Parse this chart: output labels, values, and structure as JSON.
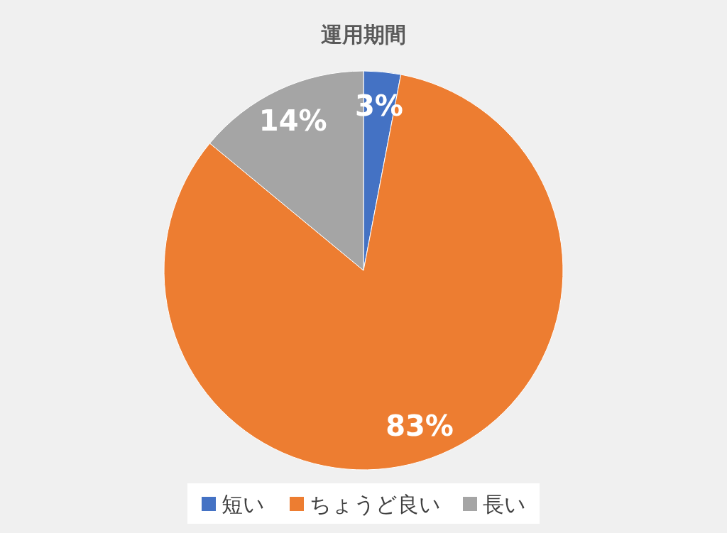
{
  "chart_data": {
    "type": "pie",
    "title": "運用期間",
    "categories": [
      "短い",
      "ちょうど良い",
      "長い"
    ],
    "values": [
      3,
      83,
      14
    ],
    "colors": [
      "#4472c4",
      "#ed7d31",
      "#a5a5a5"
    ],
    "value_labels": [
      "3%",
      "83%",
      "14%"
    ],
    "legend": "bottom"
  }
}
